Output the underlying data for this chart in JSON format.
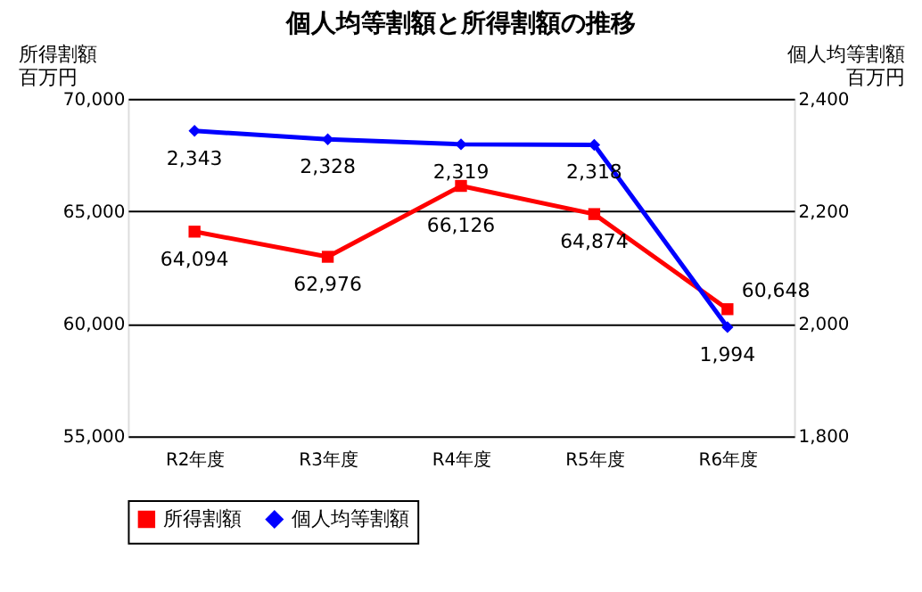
{
  "chart_data": {
    "type": "line",
    "title": "個人均等割額と所得割額の推移",
    "ylabel": "所得割額",
    "y2label": "個人均等割額",
    "annotations": [
      "百万円",
      "百万円"
    ],
    "categories": [
      "R2年度",
      "R3年度",
      "R4年度",
      "R5年度",
      "R6年度"
    ],
    "series": [
      {
        "name": "所得割額",
        "color": "#ff0000",
        "values": [
          64094,
          62976,
          66126,
          64874,
          60648
        ],
        "value_labels": [
          "64,094",
          "62,976",
          "66,126",
          "64,874",
          "60,648"
        ],
        "marker": "square"
      },
      {
        "name": "個人均等割額",
        "color": "#0000ff",
        "values": [
          2343,
          2328,
          2319,
          2318,
          1994
        ],
        "value_labels": [
          "2,343",
          "2,328",
          "2,319",
          "2,318",
          "1,994"
        ],
        "marker": "diamond",
        "axis": "y2"
      }
    ],
    "ylim": [
      55000,
      70000
    ],
    "yticks": [
      {
        "value": 55000,
        "label": "55,000"
      },
      {
        "value": 60000,
        "label": "60,000"
      },
      {
        "value": 65000,
        "label": "65,000"
      },
      {
        "value": 70000,
        "label": "70,000"
      }
    ],
    "y2lim": [
      1800,
      2400
    ],
    "y2ticks": [
      {
        "value": 1800,
        "label": "1,800"
      },
      {
        "value": 2000,
        "label": "2,000"
      },
      {
        "value": 2200,
        "label": "2,200"
      },
      {
        "value": 2400,
        "label": "2,400"
      }
    ],
    "grid": "y",
    "legend": "bottom"
  }
}
